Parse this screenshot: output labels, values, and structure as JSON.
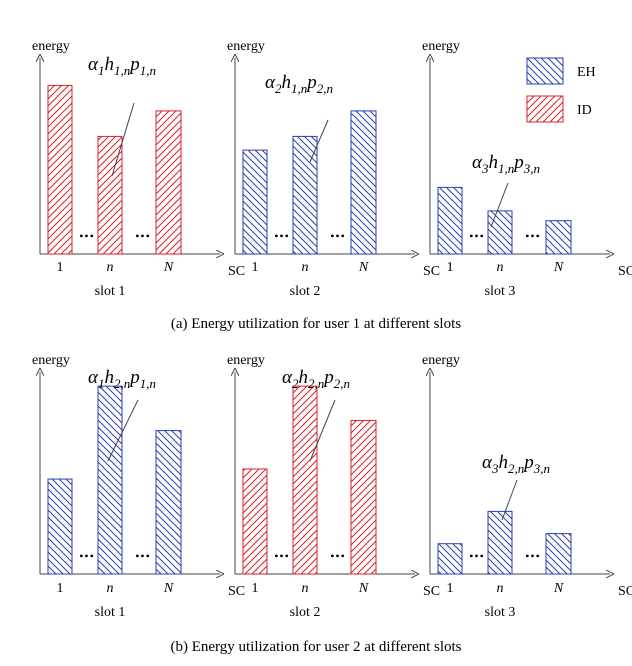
{
  "colors": {
    "EH": "#2a3fb0",
    "ID": "#d8222a",
    "axis": "#444444"
  },
  "legend": [
    {
      "key": "EH",
      "label": "EH"
    },
    {
      "key": "ID",
      "label": "ID"
    }
  ],
  "axis": {
    "y_label": "energy",
    "x_label": "SC",
    "ticks": [
      "1",
      "n",
      "N"
    ]
  },
  "ellipsis": "•••",
  "rows": [
    {
      "caption": "(a) Energy utilization for user 1 at different slots",
      "slots": [
        {
          "name": "slot 1",
          "type": "ID",
          "values": [
            0.86,
            0.6,
            0.73
          ],
          "annotation": {
            "alpha": "α",
            "alpha_sub": "1",
            "h": "h",
            "h_sub": "1,n",
            "p": "p",
            "p_sub": "1,n"
          }
        },
        {
          "name": "slot 2",
          "type": "EH",
          "values": [
            0.53,
            0.6,
            0.73
          ],
          "annotation": {
            "alpha": "α",
            "alpha_sub": "2",
            "h": "h",
            "h_sub": "1,n",
            "p": "p",
            "p_sub": "2,n"
          }
        },
        {
          "name": "slot 3",
          "type": "EH",
          "values": [
            0.34,
            0.22,
            0.17
          ],
          "annotation": {
            "alpha": "α",
            "alpha_sub": "3",
            "h": "h",
            "h_sub": "1,n",
            "p": "p",
            "p_sub": "3,n"
          }
        }
      ]
    },
    {
      "caption": "(b) Energy utilization for user 2 at different slots",
      "slots": [
        {
          "name": "slot 1",
          "type": "EH",
          "values": [
            0.47,
            0.93,
            0.71
          ],
          "annotation": {
            "alpha": "α",
            "alpha_sub": "1",
            "h": "h",
            "h_sub": "2,n",
            "p": "p",
            "p_sub": "1,n"
          }
        },
        {
          "name": "slot 2",
          "type": "ID",
          "values": [
            0.52,
            0.93,
            0.76
          ],
          "annotation": {
            "alpha": "α",
            "alpha_sub": "2",
            "h": "h",
            "h_sub": "2,n",
            "p": "p",
            "p_sub": "2,n"
          }
        },
        {
          "name": "slot 3",
          "type": "EH",
          "values": [
            0.15,
            0.31,
            0.2
          ],
          "annotation": {
            "alpha": "α",
            "alpha_sub": "3",
            "h": "h",
            "h_sub": "2,n",
            "p": "p",
            "p_sub": "3,n"
          }
        }
      ]
    }
  ]
}
